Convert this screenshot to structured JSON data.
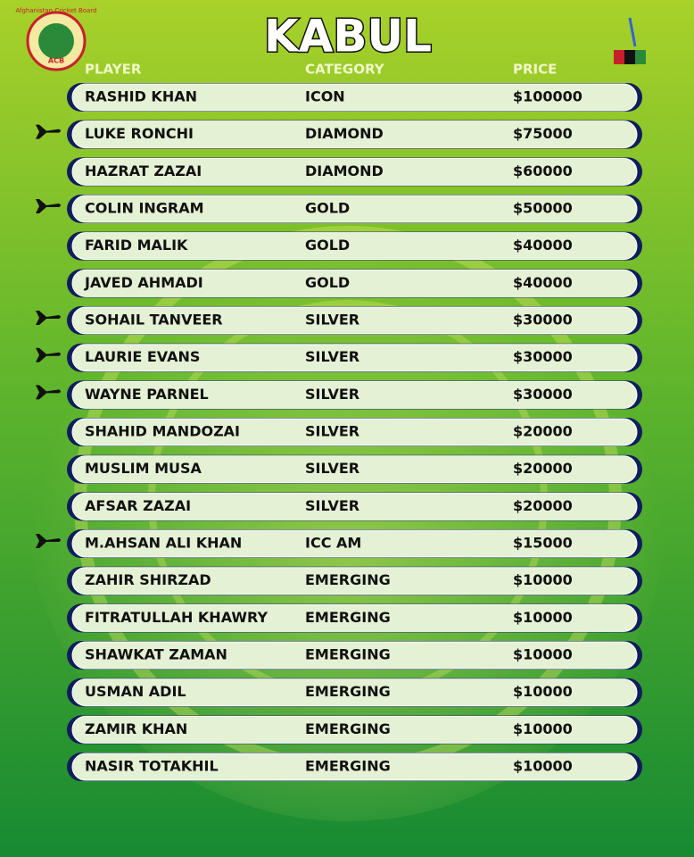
{
  "header": {
    "title": "KABUL",
    "logo_text": "Afghanistan Cricket Board",
    "logo_abbr": "ACB"
  },
  "table": {
    "columns": [
      "PLAYER",
      "CATEGORY",
      "PRICE"
    ],
    "rows": [
      {
        "player": "RASHID KHAN",
        "category": "ICON",
        "price": "$100000",
        "overseas": false
      },
      {
        "player": "LUKE RONCHI",
        "category": "DIAMOND",
        "price": "$75000",
        "overseas": true
      },
      {
        "player": "HAZRAT ZAZAI",
        "category": "DIAMOND",
        "price": "$60000",
        "overseas": false
      },
      {
        "player": "COLIN INGRAM",
        "category": "GOLD",
        "price": "$50000",
        "overseas": true
      },
      {
        "player": "FARID MALIK",
        "category": "GOLD",
        "price": "$40000",
        "overseas": false
      },
      {
        "player": "JAVED AHMADI",
        "category": "GOLD",
        "price": "$40000",
        "overseas": false
      },
      {
        "player": "SOHAIL TANVEER",
        "category": "SILVER",
        "price": "$30000",
        "overseas": true
      },
      {
        "player": "LAURIE EVANS",
        "category": "SILVER",
        "price": "$30000",
        "overseas": true
      },
      {
        "player": "WAYNE PARNEL",
        "category": "SILVER",
        "price": "$30000",
        "overseas": true
      },
      {
        "player": "SHAHID MANDOZAI",
        "category": "SILVER",
        "price": "$20000",
        "overseas": false
      },
      {
        "player": "MUSLIM MUSA",
        "category": "SILVER",
        "price": "$20000",
        "overseas": false
      },
      {
        "player": "AFSAR ZAZAI",
        "category": "SILVER",
        "price": "$20000",
        "overseas": false
      },
      {
        "player": "M.AHSAN ALI KHAN",
        "category": "ICC AM",
        "price": "$15000",
        "overseas": true
      },
      {
        "player": "ZAHIR SHIRZAD",
        "category": "EMERGING",
        "price": "$10000",
        "overseas": false
      },
      {
        "player": "FITRATULLAH KHAWRY",
        "category": "EMERGING",
        "price": "$10000",
        "overseas": false
      },
      {
        "player": "SHAWKAT ZAMAN",
        "category": "EMERGING",
        "price": "$10000",
        "overseas": false
      },
      {
        "player": "USMAN ADIL",
        "category": "EMERGING",
        "price": "$10000",
        "overseas": false
      },
      {
        "player": "ZAMIR KHAN",
        "category": "EMERGING",
        "price": "$10000",
        "overseas": false
      },
      {
        "player": "NASIR TOTAKHIL",
        "category": "EMERGING",
        "price": "$10000",
        "overseas": false
      }
    ]
  }
}
